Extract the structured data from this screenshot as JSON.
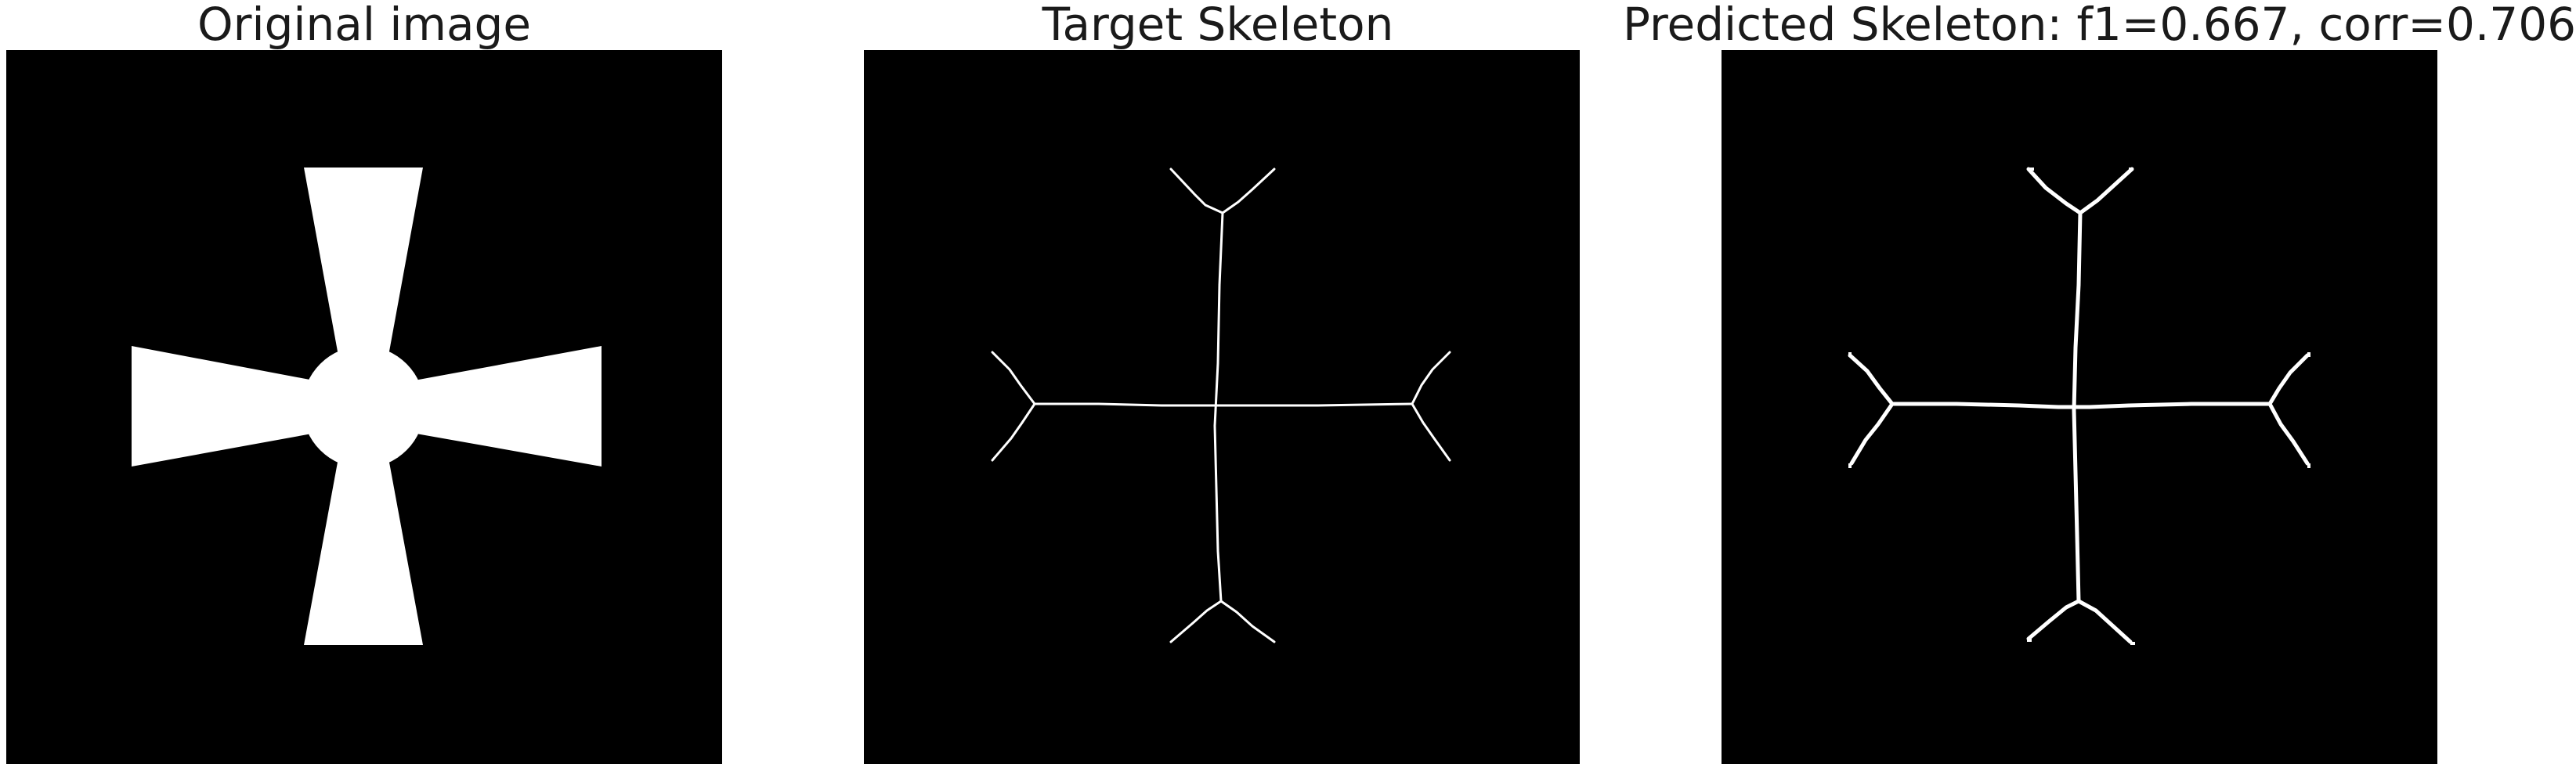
{
  "panels": [
    {
      "title": "Original image"
    },
    {
      "title": "Target Skeleton"
    },
    {
      "title": "Predicted Skeleton: f1=0.667, corr=0.706"
    }
  ],
  "colors": {
    "background": "#000000",
    "foreground": "#ffffff",
    "title_text": "#1a1a1a"
  }
}
